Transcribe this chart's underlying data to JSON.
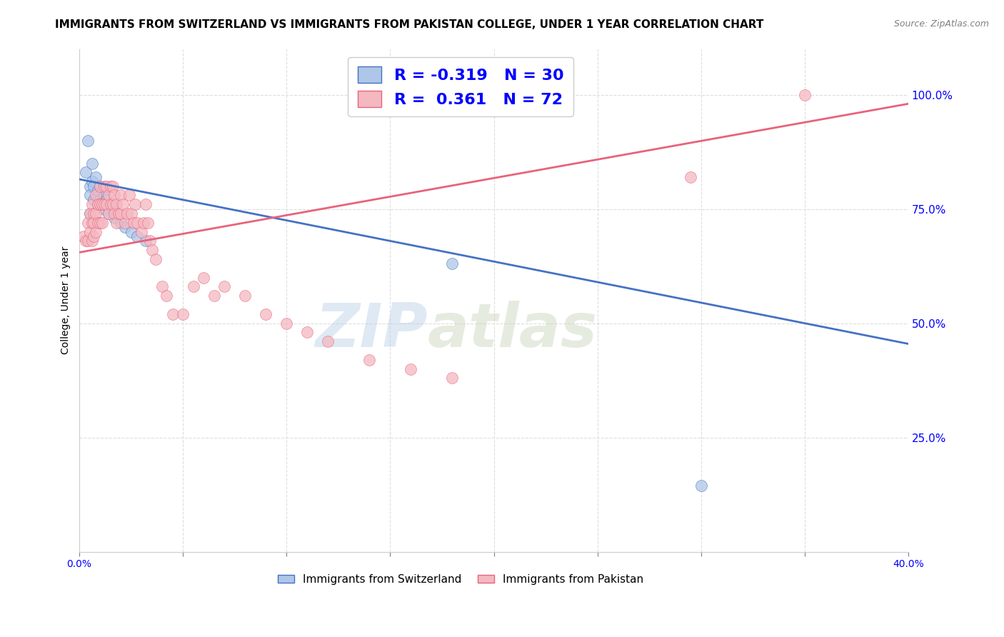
{
  "title": "IMMIGRANTS FROM SWITZERLAND VS IMMIGRANTS FROM PAKISTAN COLLEGE, UNDER 1 YEAR CORRELATION CHART",
  "source": "Source: ZipAtlas.com",
  "ylabel": "College, Under 1 year",
  "xlim": [
    0.0,
    0.4
  ],
  "ylim": [
    0.0,
    1.1
  ],
  "xticks": [
    0.0,
    0.05,
    0.1,
    0.15,
    0.2,
    0.25,
    0.3,
    0.35,
    0.4
  ],
  "xticklabels": [
    "0.0%",
    "",
    "",
    "",
    "",
    "",
    "",
    "",
    "40.0%"
  ],
  "yticks_right": [
    0.25,
    0.5,
    0.75,
    1.0
  ],
  "yticklabels_right": [
    "25.0%",
    "50.0%",
    "75.0%",
    "100.0%"
  ],
  "legend_r1": "-0.319",
  "legend_n1": "30",
  "legend_r2": "0.361",
  "legend_n2": "72",
  "color_swiss": "#aec6e8",
  "color_pakistan": "#f4b8c1",
  "line_color_swiss": "#4472c4",
  "line_color_pakistan": "#e8637a",
  "watermark_zip": "ZIP",
  "watermark_atlas": "atlas",
  "grid_color": "#dddddd",
  "bg_color": "#ffffff",
  "title_fontsize": 11,
  "axis_fontsize": 10,
  "legend_fontsize": 16,
  "marker_size": 130,
  "swiss_x": [
    0.003,
    0.004,
    0.005,
    0.005,
    0.005,
    0.006,
    0.006,
    0.007,
    0.007,
    0.008,
    0.009,
    0.009,
    0.01,
    0.01,
    0.011,
    0.012,
    0.012,
    0.013,
    0.014,
    0.015,
    0.016,
    0.017,
    0.018,
    0.02,
    0.022,
    0.025,
    0.028,
    0.032,
    0.18,
    0.3
  ],
  "swiss_y": [
    0.83,
    0.9,
    0.8,
    0.78,
    0.74,
    0.85,
    0.81,
    0.8,
    0.77,
    0.82,
    0.79,
    0.76,
    0.8,
    0.77,
    0.79,
    0.78,
    0.75,
    0.77,
    0.74,
    0.76,
    0.75,
    0.73,
    0.74,
    0.72,
    0.71,
    0.7,
    0.69,
    0.68,
    0.63,
    0.145
  ],
  "pakistan_x": [
    0.002,
    0.003,
    0.004,
    0.004,
    0.005,
    0.005,
    0.006,
    0.006,
    0.006,
    0.007,
    0.007,
    0.007,
    0.008,
    0.008,
    0.008,
    0.009,
    0.009,
    0.01,
    0.01,
    0.01,
    0.011,
    0.011,
    0.012,
    0.012,
    0.013,
    0.013,
    0.014,
    0.014,
    0.015,
    0.015,
    0.016,
    0.016,
    0.017,
    0.017,
    0.018,
    0.018,
    0.019,
    0.02,
    0.02,
    0.021,
    0.022,
    0.023,
    0.024,
    0.025,
    0.026,
    0.027,
    0.028,
    0.03,
    0.031,
    0.032,
    0.033,
    0.034,
    0.035,
    0.037,
    0.04,
    0.042,
    0.045,
    0.05,
    0.055,
    0.06,
    0.065,
    0.07,
    0.08,
    0.09,
    0.1,
    0.11,
    0.12,
    0.14,
    0.16,
    0.18,
    0.295,
    0.35
  ],
  "pakistan_y": [
    0.69,
    0.68,
    0.72,
    0.68,
    0.74,
    0.7,
    0.76,
    0.72,
    0.68,
    0.74,
    0.72,
    0.69,
    0.78,
    0.74,
    0.7,
    0.76,
    0.72,
    0.8,
    0.76,
    0.72,
    0.76,
    0.72,
    0.8,
    0.76,
    0.8,
    0.76,
    0.78,
    0.74,
    0.8,
    0.76,
    0.8,
    0.76,
    0.78,
    0.74,
    0.76,
    0.72,
    0.74,
    0.78,
    0.74,
    0.76,
    0.72,
    0.74,
    0.78,
    0.74,
    0.72,
    0.76,
    0.72,
    0.7,
    0.72,
    0.76,
    0.72,
    0.68,
    0.66,
    0.64,
    0.58,
    0.56,
    0.52,
    0.52,
    0.58,
    0.6,
    0.56,
    0.58,
    0.56,
    0.52,
    0.5,
    0.48,
    0.46,
    0.42,
    0.4,
    0.38,
    0.82,
    1.0
  ],
  "swiss_line_x": [
    0.0,
    0.4
  ],
  "swiss_line_y": [
    0.815,
    0.455
  ],
  "pakistan_line_x": [
    0.0,
    0.4
  ],
  "pakistan_line_y": [
    0.655,
    0.98
  ]
}
